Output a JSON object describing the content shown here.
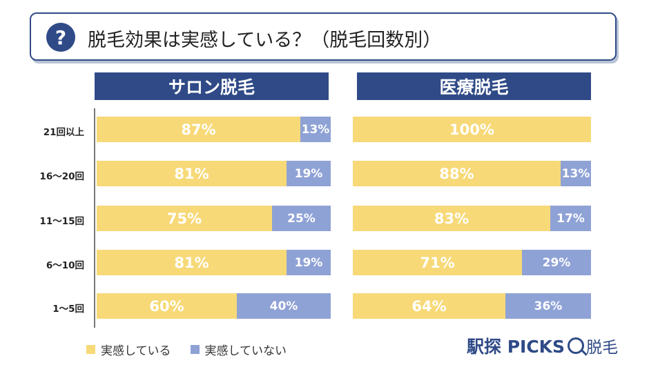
{
  "title": "脱毛効果は実感している？（脱毛回数別）",
  "brand": {
    "name": "駅探 PICKS",
    "sub": "脱毛"
  },
  "colors": {
    "header": "#2f4a87",
    "yes": "#f7d978",
    "no": "#8fa2d6"
  },
  "chart_data": {
    "type": "bar",
    "stacked": true,
    "orientation": "horizontal",
    "categories": [
      "21回以上",
      "16〜20回",
      "11〜15回",
      "6〜10回",
      "1〜5回"
    ],
    "legend": [
      "実感している",
      "実感していない"
    ],
    "panels": [
      {
        "title": "サロン脱毛",
        "yes": [
          87,
          81,
          75,
          81,
          60
        ],
        "no": [
          13,
          19,
          25,
          19,
          40
        ],
        "yes_labels": [
          "87%",
          "81%",
          "75%",
          "81%",
          "60%"
        ],
        "no_labels": [
          "13%",
          "19%",
          "25%",
          "19%",
          "40%"
        ]
      },
      {
        "title": "医療脱毛",
        "yes": [
          100,
          88,
          83,
          71,
          64
        ],
        "no": [
          0,
          13,
          17,
          29,
          36
        ],
        "yes_labels": [
          "100%",
          "88%",
          "83%",
          "71%",
          "64%"
        ],
        "no_labels": [
          "",
          "13%",
          "17%",
          "29%",
          "36%"
        ]
      }
    ]
  }
}
